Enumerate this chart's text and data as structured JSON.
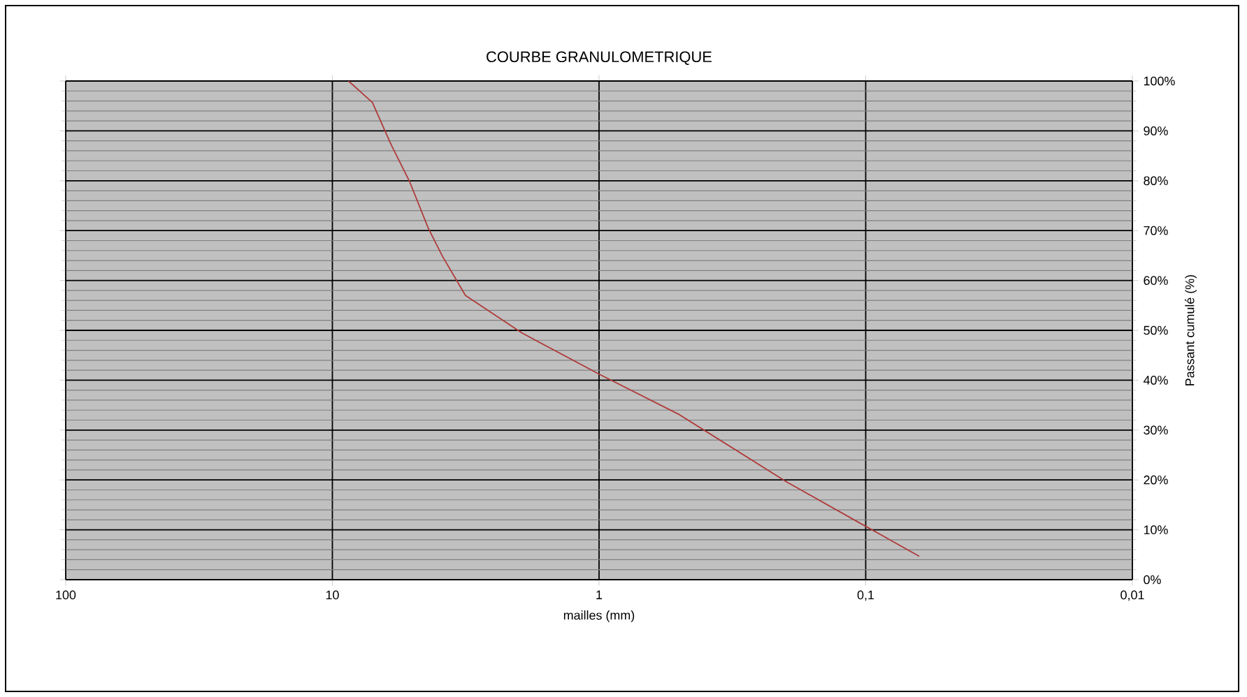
{
  "chart_data": {
    "type": "line",
    "title": "COURBE GRANULOMETRIQUE",
    "xlabel": "mailles (mm)",
    "ylabel": "Passant cumulé (%)",
    "log": "x",
    "grid": true,
    "legend": false,
    "marker": "none",
    "line_style": "solid",
    "xlim": [
      100,
      0.01
    ],
    "xticks": [
      {
        "value": 100,
        "label": "100"
      },
      {
        "value": 10,
        "label": "10"
      },
      {
        "value": 1,
        "label": "1"
      },
      {
        "value": 0.1,
        "label": "0,1"
      },
      {
        "value": 0.01,
        "label": "0,01"
      }
    ],
    "ylim": [
      0,
      100
    ],
    "yticks": [
      {
        "value": 0,
        "label": "0%"
      },
      {
        "value": 10,
        "label": "10%"
      },
      {
        "value": 20,
        "label": "20%"
      },
      {
        "value": 30,
        "label": "30%"
      },
      {
        "value": 40,
        "label": "40%"
      },
      {
        "value": 50,
        "label": "50%"
      },
      {
        "value": 60,
        "label": "60%"
      },
      {
        "value": 70,
        "label": "70%"
      },
      {
        "value": 80,
        "label": "80%"
      },
      {
        "value": 90,
        "label": "90%"
      },
      {
        "value": 100,
        "label": "100%"
      }
    ],
    "x": [
      8.7,
      7.08,
      6.03,
      5.13,
      4.37,
      3.87,
      3.17,
      1.95,
      0.99,
      0.5,
      0.198,
      0.1,
      0.063
    ],
    "series": [
      {
        "color": "#b03a3a",
        "values": [
          100,
          95.7,
          87.3,
          79.8,
          70.5,
          64.9,
          57,
          49.5,
          41.1,
          33.1,
          19.6,
          10.7,
          4.7
        ]
      }
    ]
  }
}
